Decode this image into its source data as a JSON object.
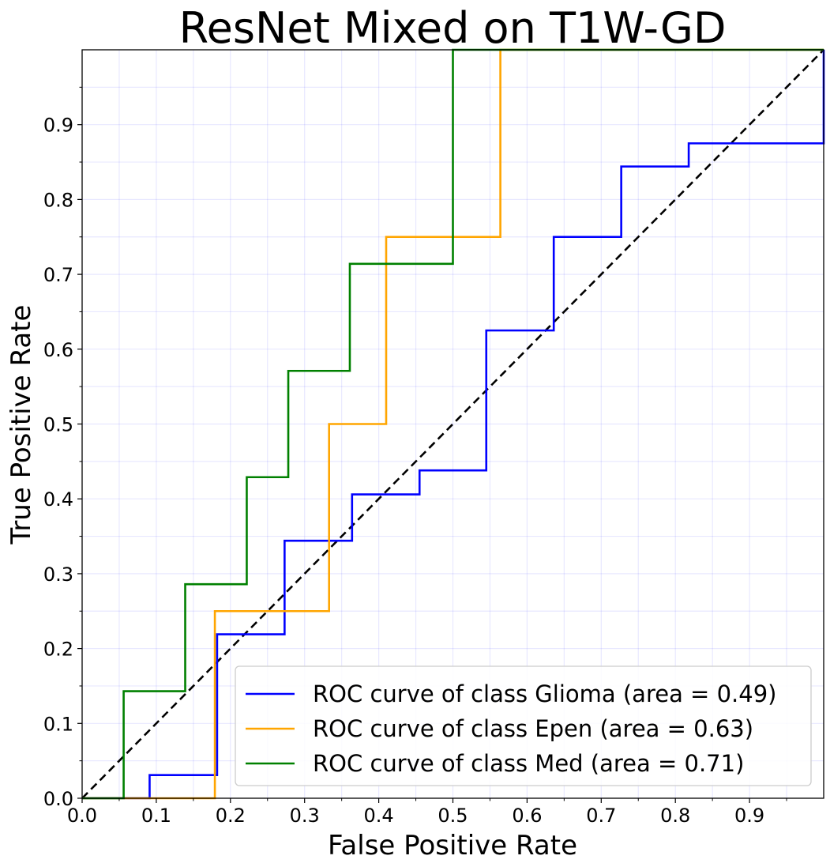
{
  "chart_data": {
    "type": "line",
    "title": "ResNet Mixed on T1W-GD",
    "xlabel": "False Positive Rate",
    "ylabel": "True Positive Rate",
    "xlim": [
      0,
      1
    ],
    "ylim": [
      0,
      1
    ],
    "xticks": [
      "0.0",
      "0.1",
      "0.2",
      "0.3",
      "0.4",
      "0.5",
      "0.6",
      "0.7",
      "0.8",
      "0.9"
    ],
    "yticks": [
      "0.0",
      "0.1",
      "0.2",
      "0.3",
      "0.4",
      "0.5",
      "0.6",
      "0.7",
      "0.8",
      "0.9"
    ],
    "grid": true,
    "legend_position": "lower-right",
    "series": [
      {
        "name": "ROC curve of class Glioma (area = 0.49)",
        "color": "#0000ff",
        "x": [
          0,
          0.091,
          0.091,
          0.182,
          0.182,
          0.273,
          0.273,
          0.364,
          0.364,
          0.455,
          0.455,
          0.545,
          0.545,
          0.636,
          0.636,
          0.727,
          0.727,
          0.818,
          0.818,
          1.0,
          1.0
        ],
        "y": [
          0,
          0,
          0.031,
          0.031,
          0.219,
          0.219,
          0.344,
          0.344,
          0.406,
          0.406,
          0.438,
          0.438,
          0.625,
          0.625,
          0.75,
          0.75,
          0.844,
          0.844,
          0.875,
          0.875,
          1.0
        ]
      },
      {
        "name": "ROC curve of class Epen (area = 0.63)",
        "color": "#ffa500",
        "x": [
          0,
          0.179,
          0.179,
          0.333,
          0.333,
          0.41,
          0.41,
          0.564,
          0.564,
          1.0
        ],
        "y": [
          0,
          0,
          0.25,
          0.25,
          0.5,
          0.5,
          0.75,
          0.75,
          1.0,
          1.0
        ]
      },
      {
        "name": "ROC curve of class Med (area = 0.71)",
        "color": "#008000",
        "x": [
          0,
          0.056,
          0.056,
          0.139,
          0.139,
          0.222,
          0.222,
          0.278,
          0.278,
          0.361,
          0.361,
          0.5,
          0.5,
          1.0
        ],
        "y": [
          0,
          0,
          0.143,
          0.143,
          0.286,
          0.286,
          0.429,
          0.429,
          0.571,
          0.571,
          0.714,
          0.714,
          1.0,
          1.0
        ]
      }
    ],
    "reference_line": {
      "x": [
        0,
        1
      ],
      "y": [
        0,
        1
      ],
      "color": "#000000",
      "style": "dashed"
    }
  }
}
